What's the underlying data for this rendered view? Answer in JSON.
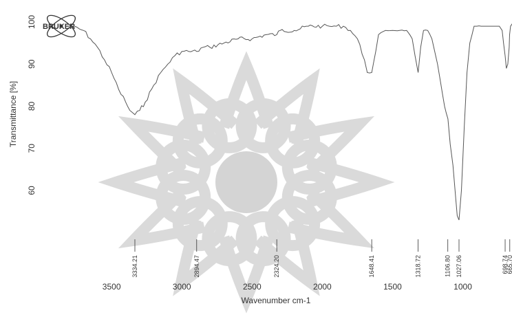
{
  "chart_data": {
    "type": "line",
    "xlabel": "Wavenumber cm-1",
    "ylabel": "Transmittance [%]",
    "xlim": [
      3800,
      600
    ],
    "ylim": [
      44,
      101
    ],
    "x_reversed": true,
    "x_ticks": [
      3500,
      3000,
      2500,
      2000,
      1500,
      1000
    ],
    "y_ticks": [
      60,
      70,
      80,
      90,
      100
    ],
    "line_color": "#555555",
    "series": [
      {
        "x": [
          3800,
          3700,
          3650,
          3600,
          3550,
          3500,
          3450,
          3400,
          3370,
          3334,
          3300,
          3260,
          3200,
          3150,
          3100,
          3050,
          3000,
          2950,
          2894,
          2850,
          2800,
          2700,
          2600,
          2500,
          2400,
          2324,
          2300,
          2200,
          2100,
          2000,
          1950,
          1900,
          1850,
          1800,
          1750,
          1700,
          1680,
          1648,
          1620,
          1600,
          1550,
          1500,
          1450,
          1400,
          1360,
          1340,
          1318,
          1300,
          1280,
          1250,
          1220,
          1200,
          1180,
          1160,
          1130,
          1106,
          1090,
          1070,
          1050,
          1040,
          1027,
          1010,
          990,
          970,
          950,
          920,
          900,
          870,
          850,
          820,
          800,
          780,
          760,
          740,
          720,
          710,
          699,
          690,
          680,
          670,
          667,
          660,
          640,
          620,
          600
        ],
        "y": [
          99,
          98,
          96,
          94,
          91,
          88,
          84,
          81,
          79,
          78,
          79,
          81,
          85,
          88,
          90,
          92,
          93,
          93,
          93,
          94,
          94,
          95,
          96,
          96,
          97,
          97,
          98,
          98,
          99,
          99,
          99,
          99,
          99,
          98,
          96,
          91,
          88,
          88,
          93,
          97,
          98,
          98,
          98,
          98,
          96,
          92,
          88,
          94,
          98,
          98,
          96,
          93,
          90,
          86,
          80,
          77,
          71,
          66,
          58,
          54,
          53,
          60,
          75,
          88,
          95,
          99,
          99,
          99,
          99,
          99,
          99,
          99,
          99,
          99,
          98,
          95,
          92,
          89,
          90,
          94,
          97,
          99,
          100,
          99,
          99
        ]
      }
    ],
    "peaks": [
      {
        "x": 3334.21,
        "label": "3334.21"
      },
      {
        "x": 2894.47,
        "label": "2894.47"
      },
      {
        "x": 2324.2,
        "label": "2324.20"
      },
      {
        "x": 1648.41,
        "label": "1648.41"
      },
      {
        "x": 1318.72,
        "label": "1318.72"
      },
      {
        "x": 1106.8,
        "label": "1106.80"
      },
      {
        "x": 1027.06,
        "label": "1027.06"
      },
      {
        "x": 698.74,
        "label": "698.74"
      },
      {
        "x": 665.7,
        "label": "665.70"
      }
    ],
    "grid": false,
    "legend": "none"
  },
  "logo": {
    "text": "BRUKER",
    "watermark_color": "#d4d4d4"
  }
}
